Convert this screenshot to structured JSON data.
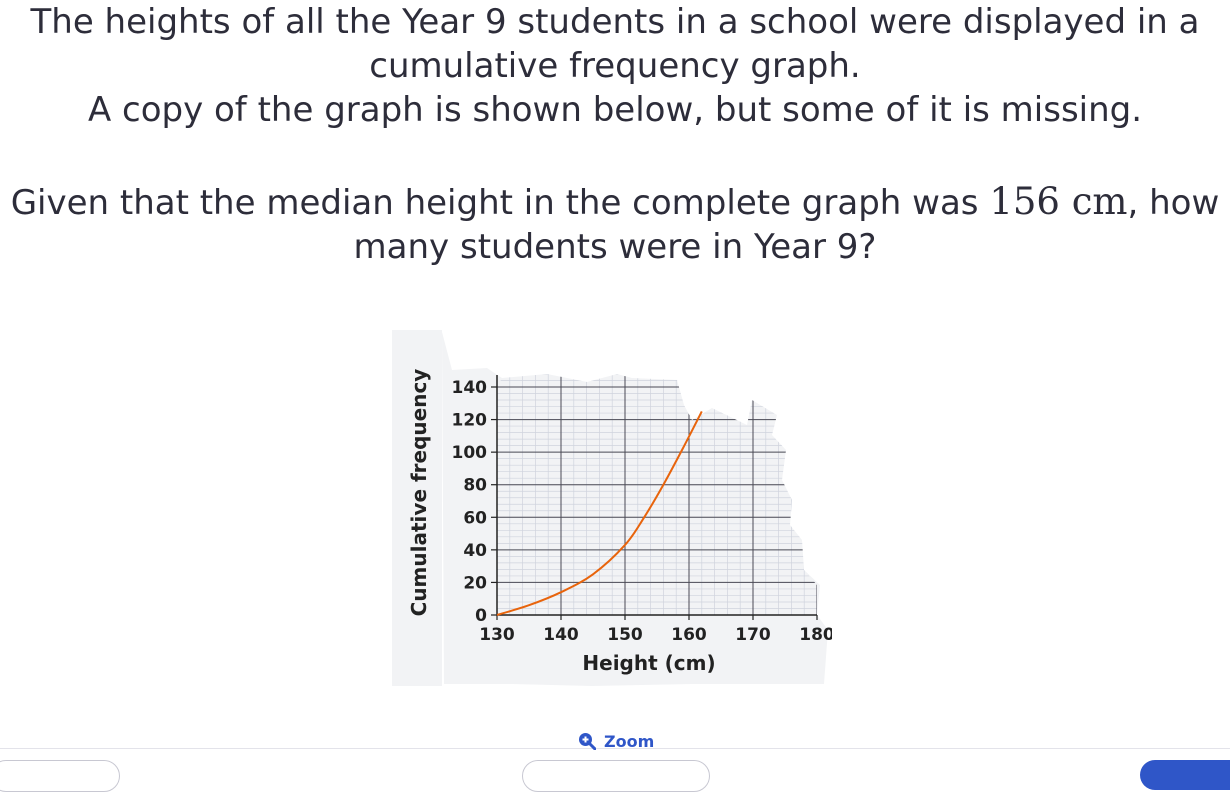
{
  "question": {
    "intro_line1": "The heights of all the Year 9 students in a school were displayed in a",
    "intro_line2": "cumulative frequency graph.",
    "intro_line3": "A copy of the graph is shown below, but some of it is missing.",
    "ask_before": "Given that the median height in the complete graph was ",
    "ask_math": "156 cm",
    "ask_after": ", how",
    "ask_line2": "many students were in Year 9?"
  },
  "chart_data": {
    "type": "line",
    "xlabel": "Height (cm)",
    "ylabel": "Cumulative frequency",
    "xlim": [
      130,
      180
    ],
    "ylim": [
      0,
      140
    ],
    "xticks": [
      130,
      140,
      150,
      160,
      170,
      180
    ],
    "yticks": [
      0,
      20,
      40,
      60,
      80,
      100,
      120,
      140
    ],
    "grid": true,
    "series": [
      {
        "color": "#e8640c",
        "x": [
          130,
          135,
          140,
          145,
          150,
          153,
          156,
          159,
          162
        ],
        "y": [
          0,
          6,
          14,
          25,
          43,
          60,
          80,
          102,
          125
        ]
      }
    ]
  },
  "zoom": {
    "label": "Zoom",
    "icon": "zoom-in-icon",
    "color": "#2f56c8"
  }
}
